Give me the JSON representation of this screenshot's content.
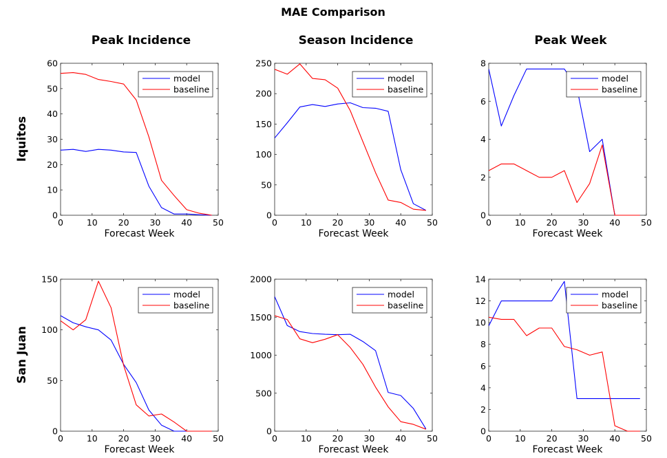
{
  "figure": {
    "title": "MAE Comparison",
    "column_titles": [
      "Peak Incidence",
      "Season Incidence",
      "Peak Week"
    ],
    "row_labels": [
      "Iquitos",
      "San Juan"
    ]
  },
  "colors": {
    "model": "#0000ff",
    "baseline": "#ff0000"
  },
  "chart_data": [
    {
      "type": "line",
      "row": "Iquitos",
      "column": "Peak Incidence",
      "xlabel": "Forecast Week",
      "ylabel": "",
      "xlim": [
        0,
        50
      ],
      "ylim": [
        0,
        60
      ],
      "xticks": [
        0,
        10,
        20,
        30,
        40,
        50
      ],
      "yticks": [
        0,
        10,
        20,
        30,
        40,
        50,
        60
      ],
      "legend": "top-right",
      "grid": false,
      "x": [
        0,
        4,
        8,
        12,
        16,
        20,
        24,
        28,
        32,
        36,
        40,
        44,
        48
      ],
      "series": [
        {
          "name": "model",
          "values": [
            25.7,
            26.0,
            25.2,
            26.0,
            25.7,
            25.0,
            24.8,
            11.5,
            3.0,
            0.5,
            0.5,
            0.2,
            0
          ]
        },
        {
          "name": "baseline",
          "values": [
            56.0,
            56.3,
            55.6,
            53.6,
            52.8,
            51.8,
            45.5,
            31.0,
            13.8,
            7.8,
            2.2,
            0.8,
            0
          ]
        }
      ]
    },
    {
      "type": "line",
      "row": "Iquitos",
      "column": "Season Incidence",
      "xlabel": "Forecast Week",
      "ylabel": "",
      "xlim": [
        0,
        50
      ],
      "ylim": [
        0,
        250
      ],
      "xticks": [
        0,
        10,
        20,
        30,
        40,
        50
      ],
      "yticks": [
        0,
        50,
        100,
        150,
        200,
        250
      ],
      "legend": "top-right",
      "grid": false,
      "x": [
        0,
        4,
        8,
        12,
        16,
        20,
        24,
        28,
        32,
        36,
        40,
        44,
        48
      ],
      "series": [
        {
          "name": "model",
          "values": [
            127,
            152,
            178,
            182,
            179,
            183,
            185,
            177,
            176,
            171,
            75,
            19,
            8
          ]
        },
        {
          "name": "baseline",
          "values": [
            240,
            232,
            249,
            225,
            223,
            209,
            172,
            121,
            70,
            25,
            21,
            10,
            8
          ]
        }
      ]
    },
    {
      "type": "line",
      "row": "Iquitos",
      "column": "Peak Week",
      "xlabel": "Forecast Week",
      "ylabel": "",
      "xlim": [
        0,
        50
      ],
      "ylim": [
        0,
        8
      ],
      "xticks": [
        0,
        10,
        20,
        30,
        40,
        50
      ],
      "yticks": [
        0,
        2,
        4,
        6,
        8
      ],
      "legend": "top-right",
      "grid": false,
      "x": [
        0,
        4,
        8,
        12,
        16,
        20,
        24,
        28,
        32,
        36,
        40,
        44,
        48
      ],
      "series": [
        {
          "name": "model",
          "values": [
            7.7,
            4.7,
            6.3,
            7.7,
            7.7,
            7.7,
            7.7,
            6.7,
            3.35,
            4.0,
            0,
            0,
            0
          ]
        },
        {
          "name": "baseline",
          "values": [
            2.35,
            2.7,
            2.7,
            2.35,
            2.0,
            2.0,
            2.35,
            0.67,
            1.67,
            3.7,
            0,
            0,
            0
          ]
        }
      ]
    },
    {
      "type": "line",
      "row": "San Juan",
      "column": "Peak Incidence",
      "xlabel": "Forecast Week",
      "ylabel": "",
      "xlim": [
        0,
        50
      ],
      "ylim": [
        0,
        150
      ],
      "xticks": [
        0,
        10,
        20,
        30,
        40,
        50
      ],
      "yticks": [
        0,
        50,
        100,
        150
      ],
      "legend": "top-right",
      "grid": false,
      "x": [
        0,
        4,
        8,
        12,
        16,
        20,
        24,
        28,
        32,
        36,
        40,
        44,
        48
      ],
      "series": [
        {
          "name": "model",
          "values": [
            114,
            107,
            103,
            100,
            90,
            66,
            48,
            21,
            6,
            0,
            0,
            0,
            0
          ]
        },
        {
          "name": "baseline",
          "values": [
            109,
            100,
            110,
            148,
            122,
            65,
            26,
            15,
            17,
            9,
            0,
            0,
            0
          ]
        }
      ]
    },
    {
      "type": "line",
      "row": "San Juan",
      "column": "Season Incidence",
      "xlabel": "Forecast Week",
      "ylabel": "",
      "xlim": [
        0,
        50
      ],
      "ylim": [
        0,
        2000
      ],
      "xticks": [
        0,
        10,
        20,
        30,
        40,
        50
      ],
      "yticks": [
        0,
        500,
        1000,
        1500,
        2000
      ],
      "legend": "top-right",
      "grid": false,
      "x": [
        0,
        4,
        8,
        12,
        16,
        20,
        24,
        28,
        32,
        36,
        40,
        44,
        48
      ],
      "series": [
        {
          "name": "model",
          "values": [
            1770,
            1390,
            1310,
            1285,
            1275,
            1270,
            1275,
            1180,
            1060,
            510,
            470,
            300,
            30
          ]
        },
        {
          "name": "baseline",
          "values": [
            1520,
            1470,
            1215,
            1165,
            1210,
            1270,
            1100,
            880,
            580,
            320,
            125,
            90,
            25
          ]
        }
      ]
    },
    {
      "type": "line",
      "row": "San Juan",
      "column": "Peak Week",
      "xlabel": "Forecast Week",
      "ylabel": "",
      "xlim": [
        0,
        50
      ],
      "ylim": [
        0,
        14
      ],
      "xticks": [
        0,
        10,
        20,
        30,
        40,
        50
      ],
      "yticks": [
        0,
        2,
        4,
        6,
        8,
        10,
        12,
        14
      ],
      "legend": "top-right",
      "grid": false,
      "x": [
        0,
        4,
        8,
        12,
        16,
        20,
        24,
        28,
        32,
        36,
        40,
        44,
        48
      ],
      "series": [
        {
          "name": "model",
          "values": [
            9.7,
            12.0,
            12.0,
            12.0,
            12.0,
            12.0,
            13.8,
            3.0,
            3.0,
            3.0,
            3.0,
            3.0,
            3.0
          ]
        },
        {
          "name": "baseline",
          "values": [
            10.5,
            10.3,
            10.3,
            8.8,
            9.5,
            9.5,
            7.8,
            7.5,
            7.0,
            7.3,
            0.5,
            0,
            0
          ]
        }
      ]
    }
  ]
}
